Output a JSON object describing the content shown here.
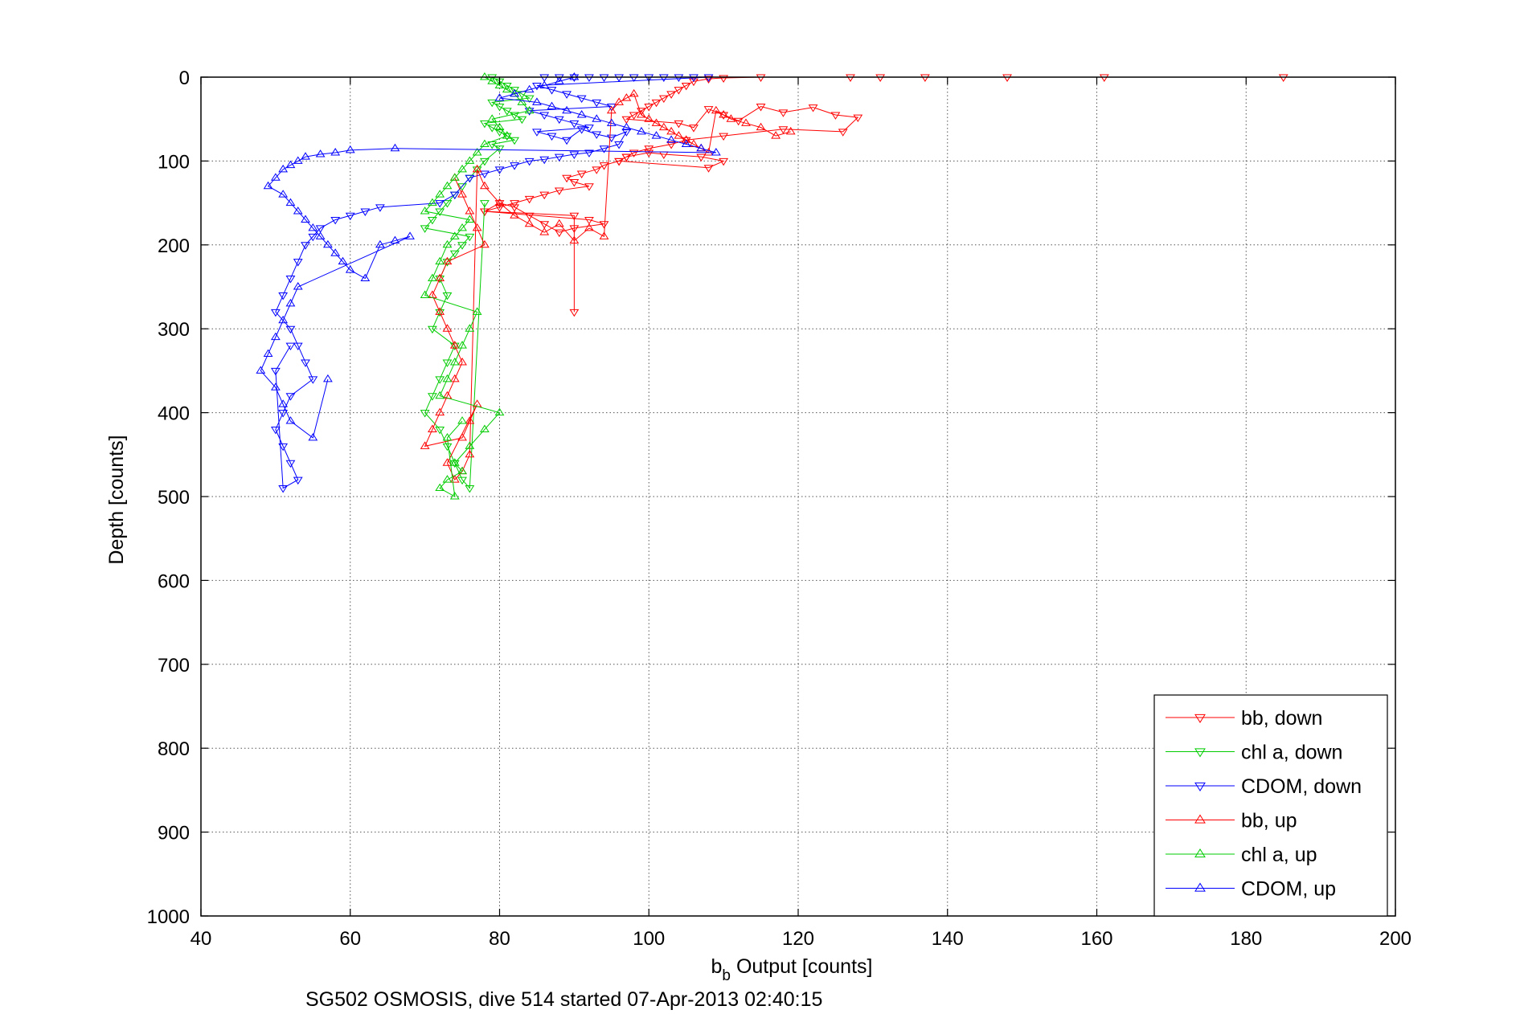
{
  "chart_data": {
    "type": "scatter",
    "title": "",
    "xlabel": "Output [counts]",
    "xlabel_symbol": "b",
    "xlabel_subscript": "b",
    "ylabel": "Depth [counts]",
    "footer": "SG502 OSMOSIS, dive 514 started 07-Apr-2013 02:40:15",
    "xlim": [
      40,
      200
    ],
    "ylim": [
      0,
      1000
    ],
    "y_reversed": true,
    "grid": "dotted",
    "x_ticks": [
      "40",
      "60",
      "80",
      "100",
      "120",
      "140",
      "160",
      "180",
      "200"
    ],
    "y_ticks": [
      "0",
      "100",
      "200",
      "300",
      "400",
      "500",
      "600",
      "700",
      "800",
      "900",
      "1000"
    ],
    "legend_position": "bottom-right",
    "series": [
      {
        "name": "bb, down",
        "color": "#ff0000",
        "marker": "triangle-down",
        "x": [
          185,
          161,
          148,
          137,
          131,
          127,
          115,
          110,
          108,
          106,
          105,
          104,
          103,
          102,
          101,
          100,
          99,
          98,
          97,
          104,
          106,
          108,
          110,
          112,
          115,
          118,
          122,
          125,
          128,
          126,
          118,
          110,
          105,
          103,
          100,
          98,
          97,
          96,
          108,
          110,
          107,
          102,
          100,
          97,
          96,
          94,
          93,
          91,
          89,
          90,
          92,
          88,
          86,
          84,
          82,
          80,
          78,
          92,
          94,
          90,
          88,
          86,
          84,
          82,
          80,
          78,
          90,
          90
        ],
        "y": [
          0,
          0,
          0,
          0,
          0,
          0,
          0,
          1,
          2,
          5,
          10,
          15,
          20,
          25,
          30,
          35,
          40,
          45,
          50,
          55,
          60,
          38,
          45,
          52,
          35,
          42,
          36,
          45,
          48,
          65,
          62,
          70,
          75,
          80,
          85,
          90,
          95,
          100,
          108,
          100,
          95,
          92,
          90,
          95,
          100,
          105,
          110,
          115,
          120,
          125,
          130,
          135,
          140,
          145,
          150,
          155,
          160,
          170,
          175,
          180,
          185,
          175,
          165,
          155,
          150,
          160,
          165,
          280
        ]
      },
      {
        "name": "chl a, down",
        "color": "#00cc00",
        "marker": "triangle-down",
        "x": [
          79,
          80,
          81,
          82,
          83,
          84,
          79,
          80,
          81,
          82,
          83,
          78,
          79,
          80,
          81,
          82,
          79,
          80,
          78,
          77,
          76,
          75,
          74,
          73,
          72,
          71,
          70,
          76,
          75,
          74,
          73,
          72,
          73,
          72,
          71,
          74,
          73,
          72,
          71,
          70,
          72,
          73,
          74,
          75,
          76,
          78
        ],
        "y": [
          0,
          5,
          10,
          15,
          20,
          25,
          30,
          35,
          40,
          45,
          50,
          55,
          60,
          65,
          70,
          75,
          80,
          85,
          100,
          110,
          120,
          130,
          140,
          150,
          160,
          170,
          180,
          190,
          200,
          210,
          220,
          240,
          260,
          280,
          300,
          320,
          340,
          360,
          380,
          400,
          420,
          440,
          460,
          480,
          490,
          150
        ]
      },
      {
        "name": "CDOM, down",
        "color": "#0000ff",
        "marker": "triangle-down",
        "x": [
          86,
          88,
          90,
          92,
          94,
          96,
          98,
          100,
          102,
          104,
          106,
          108,
          85,
          87,
          89,
          91,
          93,
          95,
          84,
          86,
          88,
          90,
          92,
          85,
          87,
          89,
          91,
          93,
          95,
          97,
          96,
          94,
          92,
          90,
          88,
          86,
          84,
          82,
          80,
          78,
          76,
          74,
          72,
          64,
          62,
          60,
          58,
          56,
          55,
          54,
          53,
          52,
          51,
          50,
          52,
          53,
          54,
          55,
          52,
          51,
          50,
          51,
          52,
          53,
          51,
          50,
          52
        ],
        "y": [
          0,
          0,
          0,
          0,
          0,
          0,
          0,
          0,
          0,
          0,
          0,
          0,
          10,
          15,
          20,
          25,
          30,
          35,
          40,
          45,
          50,
          55,
          60,
          65,
          70,
          75,
          62,
          68,
          72,
          65,
          80,
          85,
          90,
          92,
          95,
          98,
          100,
          105,
          110,
          115,
          120,
          140,
          150,
          155,
          160,
          165,
          170,
          180,
          190,
          200,
          220,
          240,
          260,
          280,
          300,
          320,
          340,
          360,
          380,
          400,
          420,
          440,
          460,
          480,
          490,
          350,
          320
        ]
      },
      {
        "name": "bb, up",
        "color": "#ff0000",
        "marker": "triangle-up",
        "x": [
          74,
          75,
          76,
          77,
          78,
          73,
          72,
          71,
          72,
          73,
          74,
          75,
          74,
          73,
          72,
          71,
          70,
          75,
          76,
          77,
          73,
          74,
          75,
          76,
          77,
          78,
          80,
          82,
          84,
          86,
          88,
          90,
          92,
          94,
          95,
          96,
          97,
          98,
          99,
          100,
          101,
          102,
          103,
          104,
          105,
          106,
          107,
          108,
          109,
          110,
          111,
          113,
          115,
          117,
          119
        ],
        "y": [
          120,
          140,
          160,
          180,
          200,
          220,
          240,
          260,
          280,
          300,
          320,
          340,
          360,
          380,
          400,
          420,
          440,
          430,
          410,
          390,
          460,
          480,
          470,
          450,
          110,
          130,
          150,
          165,
          175,
          185,
          175,
          195,
          180,
          190,
          40,
          30,
          25,
          20,
          45,
          50,
          55,
          60,
          65,
          70,
          75,
          80,
          85,
          90,
          40,
          45,
          50,
          55,
          60,
          70,
          65
        ]
      },
      {
        "name": "chl a, up",
        "color": "#00cc00",
        "marker": "triangle-up",
        "x": [
          78,
          79,
          80,
          81,
          82,
          83,
          84,
          79,
          80,
          81,
          78,
          77,
          76,
          75,
          74,
          73,
          72,
          71,
          70,
          76,
          75,
          74,
          73,
          72,
          71,
          70,
          77,
          76,
          75,
          74,
          73,
          72,
          80,
          78,
          76,
          74,
          75,
          73,
          72,
          74,
          73,
          75
        ],
        "y": [
          0,
          5,
          10,
          15,
          20,
          30,
          40,
          50,
          60,
          70,
          80,
          90,
          100,
          110,
          120,
          130,
          140,
          150,
          160,
          170,
          180,
          190,
          200,
          220,
          240,
          260,
          280,
          300,
          320,
          340,
          360,
          380,
          400,
          420,
          440,
          460,
          470,
          480,
          490,
          500,
          430,
          410
        ]
      },
      {
        "name": "CDOM, up",
        "color": "#0000ff",
        "marker": "triangle-up",
        "x": [
          90,
          88,
          86,
          84,
          82,
          80,
          85,
          87,
          89,
          91,
          93,
          95,
          97,
          99,
          101,
          103,
          105,
          107,
          109,
          66,
          60,
          58,
          56,
          54,
          53,
          52,
          51,
          50,
          49,
          51,
          52,
          53,
          54,
          55,
          56,
          57,
          58,
          59,
          60,
          62,
          64,
          66,
          68,
          53,
          52,
          51,
          50,
          49,
          48,
          50,
          51,
          52,
          55,
          57
        ],
        "y": [
          0,
          5,
          10,
          15,
          20,
          25,
          30,
          35,
          40,
          45,
          50,
          55,
          60,
          65,
          70,
          75,
          80,
          85,
          90,
          85,
          87,
          90,
          92,
          95,
          100,
          105,
          110,
          120,
          130,
          140,
          150,
          160,
          170,
          180,
          190,
          200,
          210,
          220,
          230,
          240,
          200,
          195,
          190,
          250,
          270,
          290,
          310,
          330,
          350,
          370,
          390,
          410,
          430,
          360
        ]
      }
    ]
  }
}
